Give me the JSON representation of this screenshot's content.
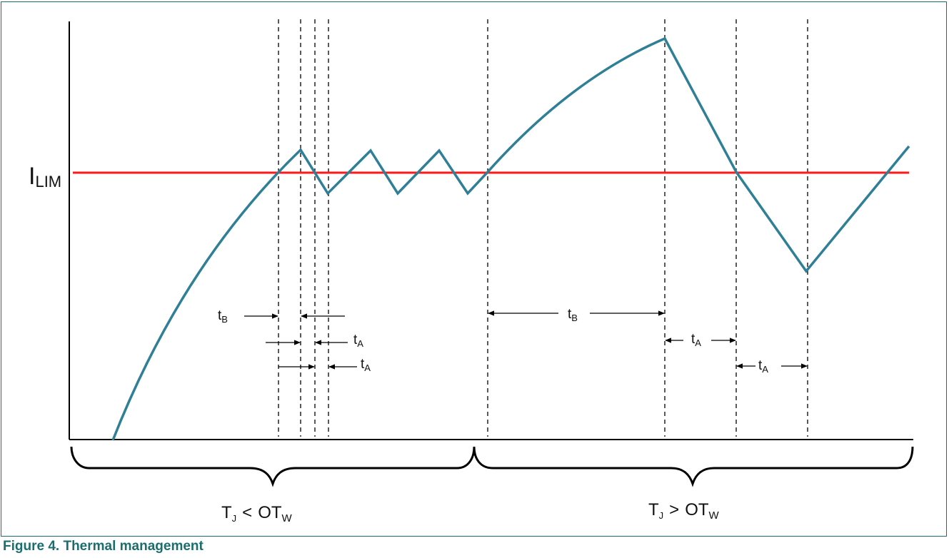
{
  "caption": "Figure 4. Thermal management",
  "labels": {
    "ilim_main": "I",
    "ilim_sub": "LIM",
    "t_main": "t",
    "tb_sub": "B",
    "ta_sub": "A",
    "region_left": {
      "t": "T",
      "tsub": "J",
      "op": "<",
      "ot": "OT",
      "otsub": "W"
    },
    "region_right": {
      "t": "T",
      "tsub": "J",
      "op": ">",
      "ot": "OT",
      "otsub": "W"
    }
  },
  "colors": {
    "current_curve": "#2f7f96",
    "limit_line": "#ff1a1a",
    "axes": "#000000",
    "caption": "#1b6e6e"
  }
}
